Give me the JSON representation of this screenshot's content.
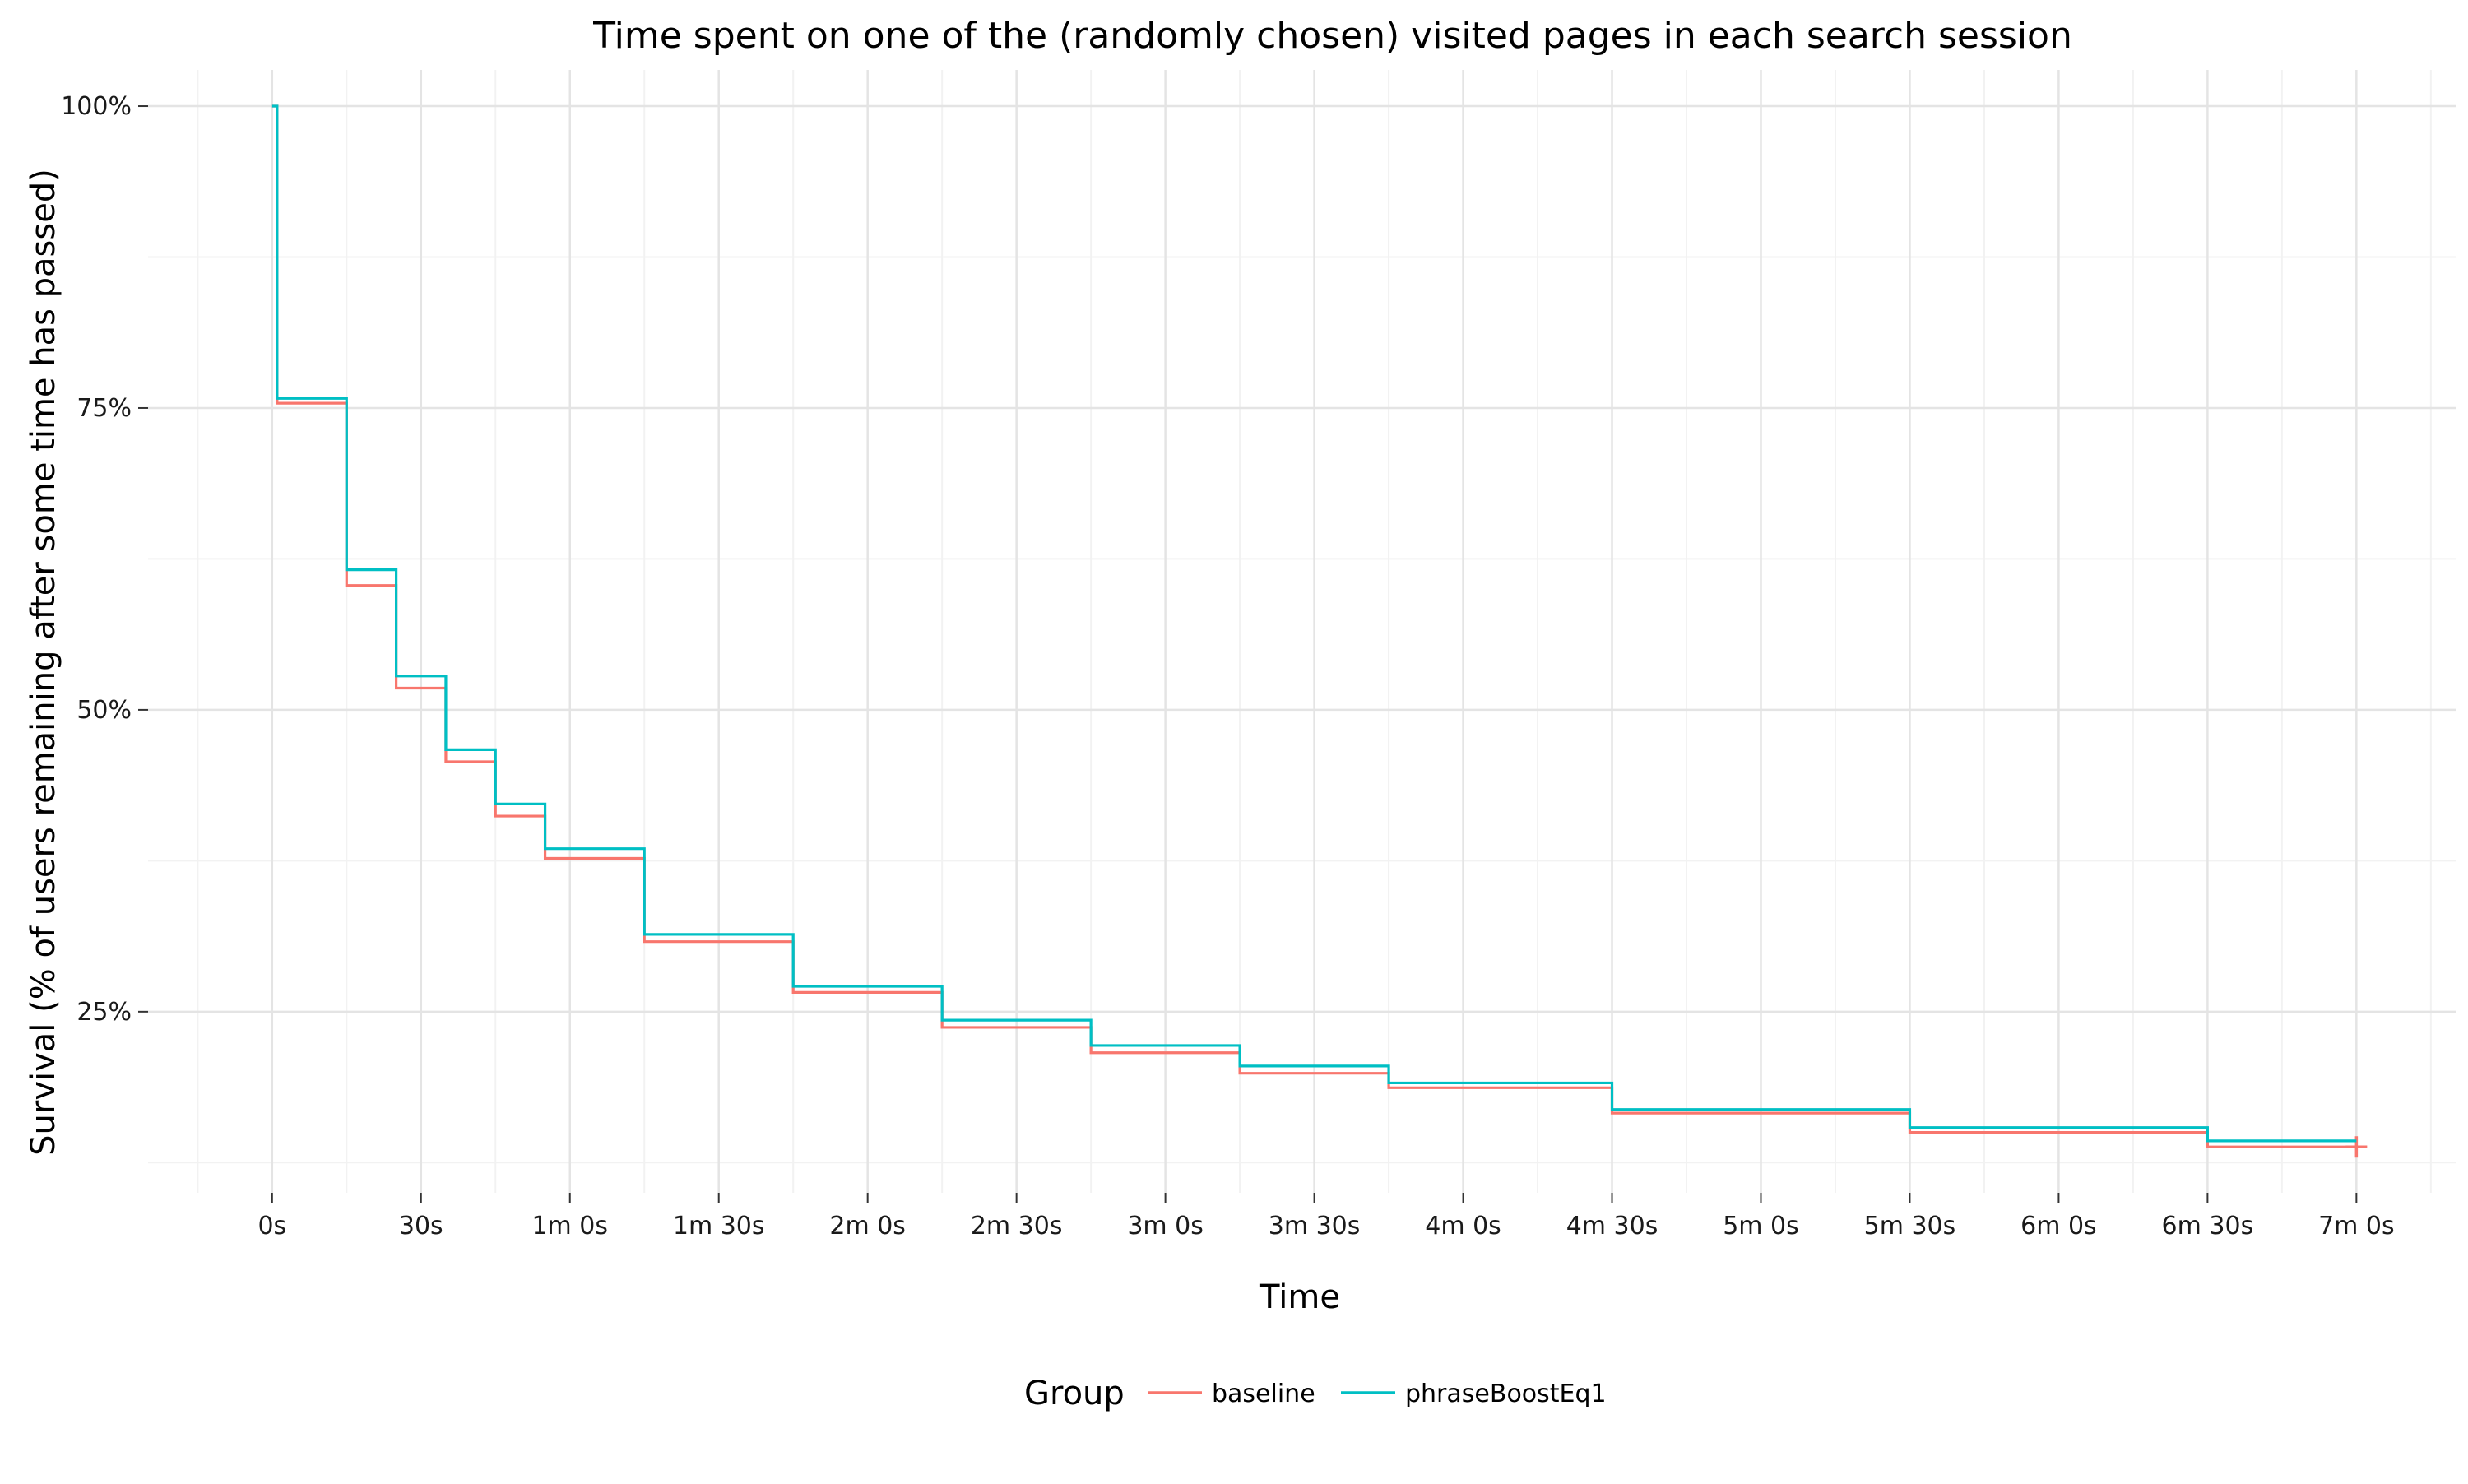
{
  "chart_data": {
    "type": "line",
    "subtype": "step-survival",
    "title": "Time spent on one of the (randomly chosen) visited pages in each search session",
    "xlabel": "Time",
    "ylabel": "Survival (% of users remaining after some time has passed)",
    "x_unit": "seconds",
    "xlim": [
      -25,
      440
    ],
    "ylim": [
      0.1,
      1.03
    ],
    "x_ticks": [
      0,
      30,
      60,
      90,
      120,
      150,
      180,
      210,
      240,
      270,
      300,
      330,
      360,
      390,
      420
    ],
    "x_tick_labels": [
      "0s",
      "30s",
      "1m 0s",
      "1m 30s",
      "2m 0s",
      "2m 30s",
      "3m 0s",
      "3m 30s",
      "4m 0s",
      "4m 30s",
      "5m 0s",
      "5m 30s",
      "6m 0s",
      "6m 30s",
      "7m 0s"
    ],
    "y_ticks": [
      0.25,
      0.5,
      0.75,
      1.0
    ],
    "y_tick_labels": [
      "25%",
      "50%",
      "75%",
      "100%"
    ],
    "grid": true,
    "legend": {
      "title": "Group",
      "position": "bottom",
      "entries": [
        "baseline",
        "phraseBoostEq1"
      ]
    },
    "series": [
      {
        "name": "baseline",
        "color": "#F8766D",
        "x": [
          0,
          1,
          15,
          25,
          35,
          45,
          55,
          75,
          105,
          135,
          165,
          195,
          225,
          270,
          330,
          390,
          420
        ],
        "y": [
          1.0,
          0.754,
          0.603,
          0.518,
          0.457,
          0.412,
          0.377,
          0.308,
          0.266,
          0.237,
          0.216,
          0.199,
          0.187,
          0.166,
          0.15,
          0.138,
          0.138
        ],
        "censor_marker": {
          "x": 420,
          "y": 0.138
        }
      },
      {
        "name": "phraseBoostEq1",
        "color": "#00BFC4",
        "x": [
          0,
          1,
          15,
          25,
          35,
          45,
          55,
          75,
          105,
          135,
          165,
          195,
          225,
          270,
          330,
          390,
          420
        ],
        "y": [
          1.0,
          0.758,
          0.616,
          0.528,
          0.467,
          0.422,
          0.385,
          0.314,
          0.271,
          0.243,
          0.222,
          0.205,
          0.191,
          0.169,
          0.154,
          0.143,
          0.143
        ]
      }
    ]
  }
}
